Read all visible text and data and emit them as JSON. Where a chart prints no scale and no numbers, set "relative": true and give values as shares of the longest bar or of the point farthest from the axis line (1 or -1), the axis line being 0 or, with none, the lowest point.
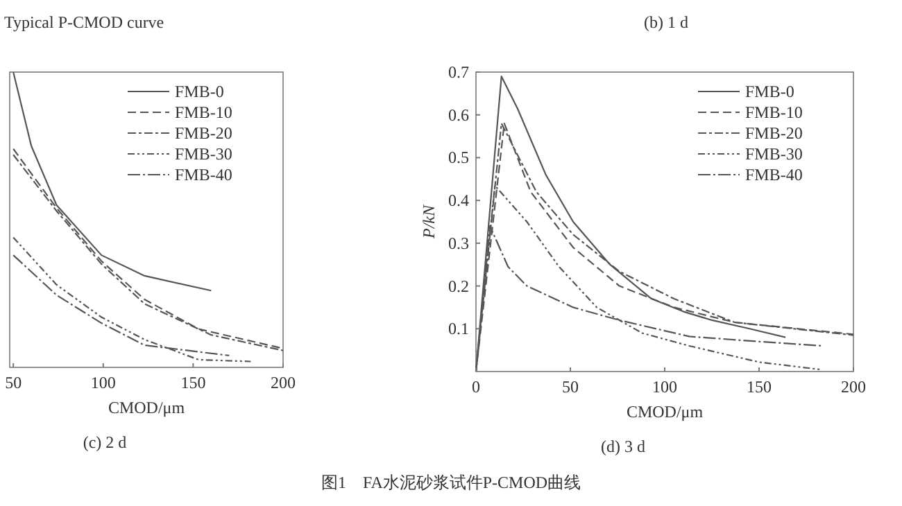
{
  "chart_data": [
    {
      "type": "line",
      "title": "(c) 2 d",
      "xlabel": "CMOD/μm",
      "relative": true,
      "xlim": [
        48,
        200
      ],
      "xticks": [
        50,
        100,
        150,
        200
      ],
      "legend": "top right",
      "annotations": [
        "Typical P-CMOD curve"
      ],
      "series": [
        {
          "name": "FMB-0",
          "color": "#555555",
          "line_style": "solid",
          "x": [
            50,
            60,
            74,
            99,
            123,
            160
          ],
          "values": [
            1.0,
            0.75,
            0.55,
            0.38,
            0.31,
            0.26
          ]
        },
        {
          "name": "FMB-10",
          "color": "#555555",
          "line_style": "dashed",
          "x": [
            50,
            74,
            99,
            123,
            153,
            200
          ],
          "values": [
            0.74,
            0.54,
            0.36,
            0.23,
            0.13,
            0.064
          ]
        },
        {
          "name": "FMB-20",
          "color": "#555555",
          "line_style": "dashdot",
          "x": [
            50,
            74,
            99,
            123,
            160,
            200
          ],
          "values": [
            0.72,
            0.53,
            0.35,
            0.215,
            0.11,
            0.057
          ]
        },
        {
          "name": "FMB-30",
          "color": "#555555",
          "line_style": "dashdotdot",
          "x": [
            50,
            74,
            99,
            123,
            153,
            182
          ],
          "values": [
            0.44,
            0.28,
            0.17,
            0.094,
            0.026,
            0.02
          ]
        },
        {
          "name": "FMB-40",
          "color": "#555555",
          "line_style": "longdashdot",
          "x": [
            50,
            74,
            99,
            123,
            170
          ],
          "values": [
            0.38,
            0.245,
            0.15,
            0.075,
            0.04
          ]
        }
      ]
    },
    {
      "type": "line",
      "title": "(d) 3 d",
      "xlabel": "CMOD/μm",
      "ylabel": "P/kN",
      "xlim": [
        0,
        200
      ],
      "ylim": [
        0,
        0.7
      ],
      "xticks": [
        0,
        50,
        100,
        150,
        200
      ],
      "yticks": [
        0.1,
        0.2,
        0.3,
        0.4,
        0.5,
        0.6,
        0.7
      ],
      "legend": "top right",
      "annotations": [
        "(b) 1 d",
        "图1　FA水泥砂浆试件P-CMOD曲线"
      ],
      "series": [
        {
          "name": "FMB-0",
          "color": "#555555",
          "line_style": "solid",
          "x": [
            0,
            13.5,
            22,
            37,
            51.5,
            71,
            93,
            110,
            125,
            145,
            164
          ],
          "values": [
            0,
            0.69,
            0.615,
            0.46,
            0.35,
            0.25,
            0.17,
            0.14,
            0.12,
            0.1,
            0.08
          ]
        },
        {
          "name": "FMB-10",
          "color": "#555555",
          "line_style": "dashed",
          "x": [
            0,
            15,
            29,
            51.5,
            76,
            105,
            137,
            200
          ],
          "values": [
            0,
            0.58,
            0.42,
            0.29,
            0.2,
            0.15,
            0.115,
            0.087
          ]
        },
        {
          "name": "FMB-20",
          "color": "#555555",
          "line_style": "dashdot",
          "x": [
            0,
            13.5,
            32,
            51.5,
            76,
            105,
            137,
            200
          ],
          "values": [
            0,
            0.58,
            0.42,
            0.32,
            0.234,
            0.17,
            0.115,
            0.085
          ]
        },
        {
          "name": "FMB-30",
          "color": "#555555",
          "line_style": "dashdotdot",
          "x": [
            0,
            10,
            27,
            44,
            64,
            88,
            113,
            150,
            182
          ],
          "values": [
            0,
            0.435,
            0.35,
            0.245,
            0.15,
            0.09,
            0.06,
            0.022,
            0.005
          ]
        },
        {
          "name": "FMB-40",
          "color": "#555555",
          "line_style": "longdashdot",
          "x": [
            0,
            7.4,
            17,
            27,
            51.5,
            76,
            113,
            150,
            184
          ],
          "values": [
            0,
            0.34,
            0.245,
            0.2,
            0.15,
            0.12,
            0.082,
            0.07,
            0.06
          ]
        }
      ]
    }
  ]
}
